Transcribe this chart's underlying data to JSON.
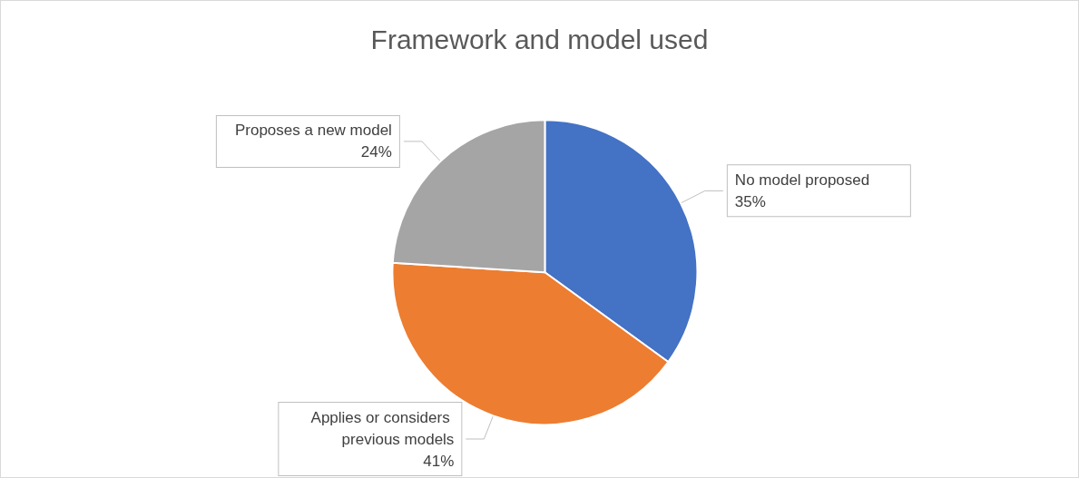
{
  "chart_data": {
    "type": "pie",
    "title": "Framework and model used",
    "categories": [
      "No model proposed",
      "Applies or considers previous models",
      "Proposes a new model"
    ],
    "values": [
      35,
      41,
      24
    ],
    "colors": [
      "#4472c4",
      "#ed7d31",
      "#a5a5a5"
    ],
    "value_labels": [
      "35%",
      "41%",
      "24%"
    ],
    "legend": false
  }
}
